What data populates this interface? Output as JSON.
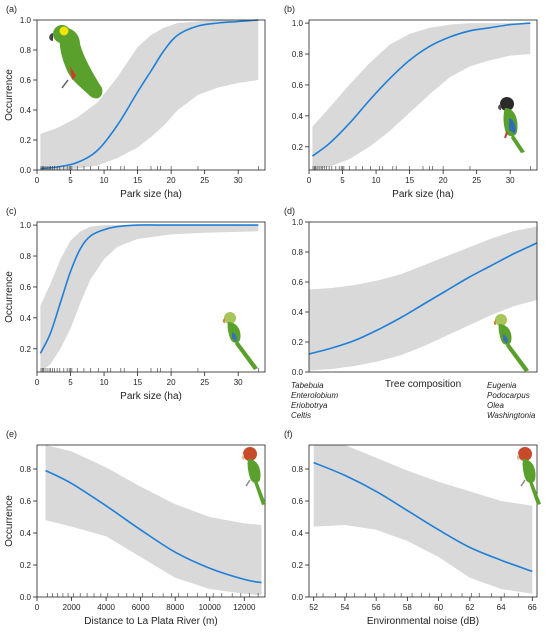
{
  "figure": {
    "colors": {
      "curve": "#1f7fd6",
      "band": "#d9d9d9",
      "axis": "#222222",
      "bird_green": "#5aa02c",
      "bird_yellow": "#f2e400",
      "bird_dark": "#2a2a2a"
    }
  },
  "chart_data": [
    {
      "type": "line",
      "panel_label": "(a)",
      "xlabel": "Park size (ha)",
      "ylabel": "Occurrence",
      "xlim": [
        0,
        34
      ],
      "ylim": [
        0,
        1
      ],
      "xticks": [
        "0",
        "5",
        "10",
        "15",
        "20",
        "25",
        "30"
      ],
      "yticks": [
        "0.0",
        "0.2",
        "0.4",
        "0.6",
        "0.8",
        "1.0"
      ],
      "x": [
        0.5,
        3,
        6,
        9,
        12,
        15,
        17,
        19,
        21,
        24,
        27,
        30,
        33
      ],
      "series": [
        {
          "values": [
            0.01,
            0.02,
            0.05,
            0.13,
            0.3,
            0.52,
            0.66,
            0.8,
            0.9,
            0.96,
            0.98,
            0.99,
            1.0
          ]
        }
      ],
      "band_lower": [
        0.0,
        0.0,
        0.01,
        0.03,
        0.08,
        0.15,
        0.22,
        0.3,
        0.4,
        0.5,
        0.55,
        0.58,
        0.6
      ],
      "band_upper": [
        0.24,
        0.28,
        0.35,
        0.45,
        0.62,
        0.82,
        0.9,
        0.95,
        0.98,
        0.99,
        1.0,
        1.0,
        1.0
      ],
      "rug": [
        0.6,
        0.8,
        1.0,
        1.2,
        1.5,
        1.8,
        2.0,
        2.3,
        2.6,
        3.0,
        3.4,
        4.0,
        4.5,
        4.8,
        5.0,
        5.2,
        6.0,
        7.0,
        8.0,
        9.2,
        10.5,
        11.0,
        12.5,
        13.0,
        15.0,
        17.0,
        18.0,
        18.4,
        20.0,
        24.0,
        33.0
      ],
      "icon": "green-parrot-icon"
    },
    {
      "type": "line",
      "panel_label": "(b)",
      "xlabel": "Park size (ha)",
      "ylabel": "",
      "xlim": [
        0,
        34
      ],
      "ylim": [
        0.05,
        1.02
      ],
      "xticks": [
        "0",
        "5",
        "10",
        "15",
        "20",
        "25",
        "30"
      ],
      "yticks": [
        "0.2",
        "0.4",
        "0.6",
        "0.8",
        "1.0"
      ],
      "x": [
        0.5,
        3,
        6,
        9,
        12,
        15,
        18,
        21,
        24,
        27,
        30,
        33
      ],
      "series": [
        {
          "values": [
            0.14,
            0.22,
            0.35,
            0.5,
            0.64,
            0.76,
            0.85,
            0.91,
            0.95,
            0.97,
            0.99,
            1.0
          ]
        }
      ],
      "band_lower": [
        0.05,
        0.07,
        0.12,
        0.2,
        0.3,
        0.42,
        0.54,
        0.65,
        0.72,
        0.76,
        0.79,
        0.8
      ],
      "band_upper": [
        0.33,
        0.45,
        0.6,
        0.74,
        0.86,
        0.93,
        0.97,
        0.99,
        1.0,
        1.0,
        1.0,
        1.0
      ],
      "rug": [
        0.6,
        0.8,
        1.0,
        1.2,
        1.5,
        1.8,
        2.0,
        2.3,
        2.6,
        3.0,
        3.4,
        4.0,
        4.5,
        4.8,
        5.0,
        5.2,
        6.0,
        7.0,
        8.0,
        9.2,
        10.5,
        11.0,
        12.5,
        13.0,
        15.0,
        17.0,
        18.0,
        18.4,
        20.0,
        24.0,
        33.0
      ],
      "icon": "nanday-parakeet-icon"
    },
    {
      "type": "line",
      "panel_label": "(c)",
      "xlabel": "Park size (ha)",
      "ylabel": "Occurrence",
      "xlim": [
        0,
        34
      ],
      "ylim": [
        0.05,
        1.02
      ],
      "xticks": [
        "0",
        "5",
        "10",
        "15",
        "20",
        "25",
        "30"
      ],
      "yticks": [
        "0.2",
        "0.4",
        "0.6",
        "0.8",
        "1.0"
      ],
      "x": [
        0.5,
        2,
        3.5,
        5,
        6.5,
        8,
        10,
        12,
        15,
        20,
        25,
        33
      ],
      "series": [
        {
          "values": [
            0.17,
            0.3,
            0.5,
            0.7,
            0.85,
            0.93,
            0.97,
            0.99,
            1.0,
            1.0,
            1.0,
            1.0
          ]
        }
      ],
      "band_lower": [
        0.05,
        0.1,
        0.2,
        0.33,
        0.5,
        0.65,
        0.78,
        0.86,
        0.91,
        0.94,
        0.95,
        0.96
      ],
      "band_upper": [
        0.48,
        0.62,
        0.78,
        0.9,
        0.96,
        0.99,
        1.0,
        1.0,
        1.0,
        1.0,
        1.0,
        1.0
      ],
      "rug": [
        0.6,
        0.8,
        1.0,
        1.2,
        1.5,
        1.8,
        2.0,
        2.3,
        2.6,
        3.0,
        3.4,
        4.0,
        4.5,
        4.8,
        5.0,
        5.2,
        6.0,
        7.0,
        8.0,
        9.2,
        10.5,
        11.0,
        12.5,
        13.0,
        15.0,
        17.0,
        18.0,
        18.4,
        20.0,
        24.0,
        33.0
      ],
      "icon": "monk-parakeet-icon"
    },
    {
      "type": "line",
      "panel_label": "(d)",
      "xlabel": "Tree composition",
      "ylabel": "",
      "xlim": [
        0,
        1
      ],
      "ylim": [
        0,
        1
      ],
      "xticks": [],
      "yticks": [
        "0.0",
        "0.2",
        "0.4",
        "0.6",
        "0.8",
        "1.0"
      ],
      "x": [
        0.0,
        0.1,
        0.2,
        0.3,
        0.4,
        0.5,
        0.6,
        0.7,
        0.8,
        0.9,
        1.0
      ],
      "series": [
        {
          "values": [
            0.12,
            0.16,
            0.21,
            0.28,
            0.36,
            0.45,
            0.54,
            0.63,
            0.71,
            0.79,
            0.86
          ]
        }
      ],
      "band_lower": [
        0.01,
        0.02,
        0.04,
        0.07,
        0.11,
        0.17,
        0.24,
        0.31,
        0.38,
        0.44,
        0.48
      ],
      "band_upper": [
        0.55,
        0.56,
        0.58,
        0.61,
        0.65,
        0.71,
        0.77,
        0.83,
        0.89,
        0.94,
        0.97
      ],
      "axis_left_labels": [
        "Tabebuia",
        "Enterolobium",
        "Eriobotrya",
        "Celtis"
      ],
      "axis_right_labels": [
        "Eugenia",
        "Podocarpus",
        "Olea",
        "Washingtonia"
      ],
      "icon": "monk-parakeet-icon"
    },
    {
      "type": "line",
      "panel_label": "(e)",
      "xlabel": "Distance to La Plata River (m)",
      "ylabel": "Occurrence",
      "xlim": [
        0,
        13200
      ],
      "ylim": [
        0,
        0.95
      ],
      "xticks": [
        "0",
        "2000",
        "4000",
        "6000",
        "8000",
        "10000",
        "12000"
      ],
      "yticks": [
        "0.0",
        "0.2",
        "0.4",
        "0.6",
        "0.8"
      ],
      "x": [
        500,
        2000,
        4000,
        6000,
        8000,
        10000,
        12000,
        13000
      ],
      "series": [
        {
          "values": [
            0.79,
            0.71,
            0.57,
            0.42,
            0.28,
            0.18,
            0.11,
            0.09
          ]
        }
      ],
      "band_lower": [
        0.48,
        0.44,
        0.38,
        0.25,
        0.12,
        0.05,
        0.02,
        0.01
      ],
      "band_upper": [
        0.95,
        0.91,
        0.81,
        0.69,
        0.58,
        0.5,
        0.46,
        0.45
      ],
      "rug": [
        600,
        900,
        1200,
        1500,
        1800,
        2100,
        2500,
        2900,
        3300,
        3700,
        4100,
        4700,
        5200,
        5600,
        6100,
        6700,
        7300,
        7800,
        8200,
        8700,
        9300,
        9800,
        10200,
        10700,
        11300,
        11800,
        12300,
        12800
      ],
      "icon": "mitred-parakeet-icon"
    },
    {
      "type": "line",
      "panel_label": "(f)",
      "xlabel": "Environmental noise (dB)",
      "ylabel": "",
      "xlim": [
        51.7,
        66.3
      ],
      "ylim": [
        0,
        0.95
      ],
      "xticks": [
        "52",
        "54",
        "56",
        "58",
        "60",
        "62",
        "64",
        "66"
      ],
      "yticks": [
        "0.0",
        "0.2",
        "0.4",
        "0.6",
        "0.8"
      ],
      "x": [
        52,
        54,
        56,
        58,
        60,
        62,
        64,
        66
      ],
      "series": [
        {
          "values": [
            0.84,
            0.76,
            0.66,
            0.54,
            0.42,
            0.31,
            0.23,
            0.16
          ]
        }
      ],
      "band_lower": [
        0.44,
        0.45,
        0.42,
        0.35,
        0.25,
        0.12,
        0.05,
        0.02
      ],
      "band_upper": [
        0.98,
        0.95,
        0.87,
        0.79,
        0.72,
        0.66,
        0.6,
        0.57
      ],
      "rug": [
        52.2,
        52.6,
        53.4,
        54.1,
        54.6,
        55.3,
        55.9,
        56.5,
        57.2,
        57.6,
        58.3,
        58.9,
        59.4,
        60.2,
        60.8,
        61.5,
        62.1,
        62.6,
        63.4,
        64.2,
        65.1
      ],
      "icon": "mitred-parakeet-icon"
    }
  ]
}
